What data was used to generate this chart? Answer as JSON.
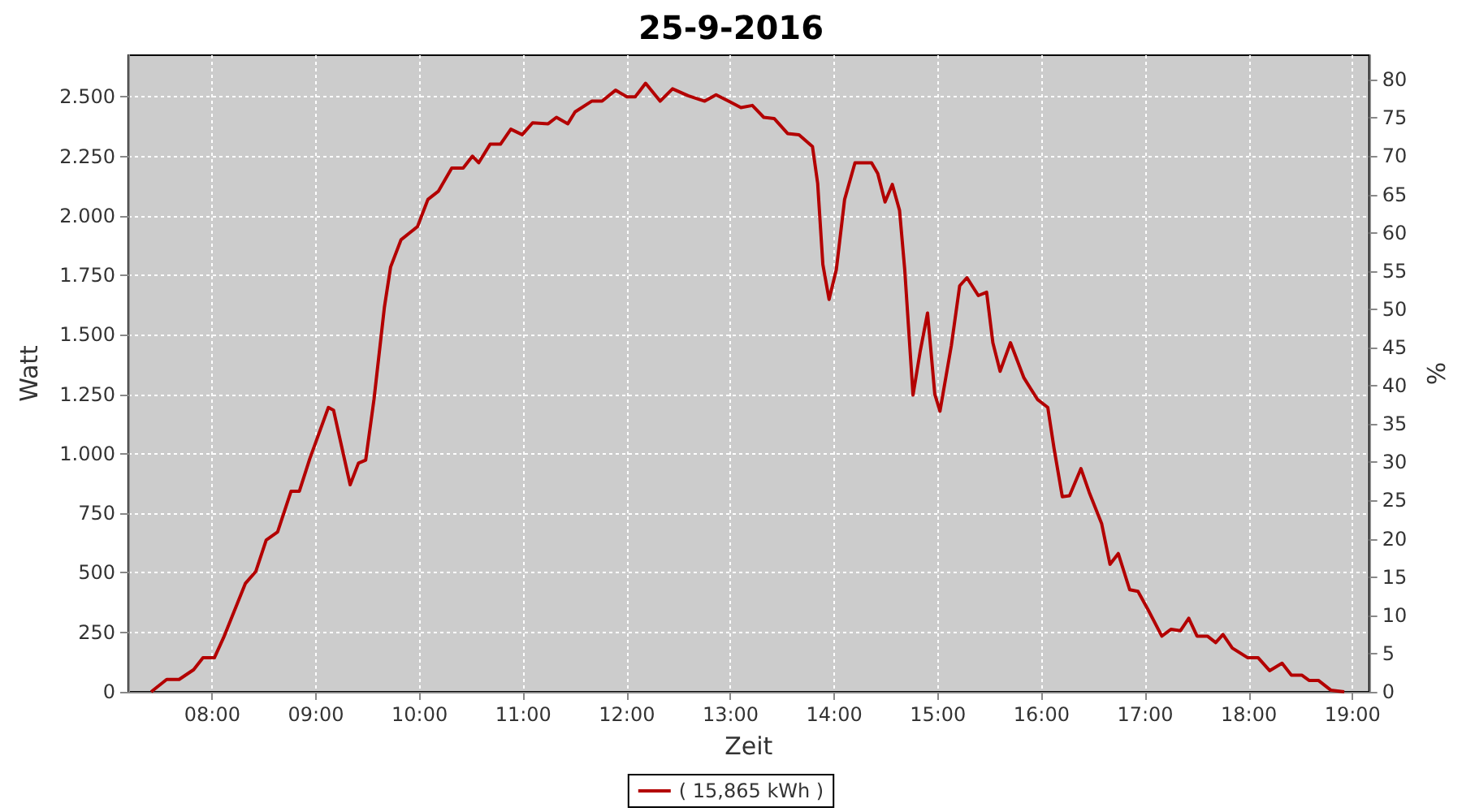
{
  "chart_data": {
    "type": "line",
    "title": "25-9-2016",
    "xlabel": "Zeit",
    "ylabel": "Watt",
    "y2label": "%",
    "xlim": [
      7.19,
      19.16
    ],
    "xticks": [
      {
        "value": 8,
        "label": "08:00"
      },
      {
        "value": 9,
        "label": "09:00"
      },
      {
        "value": 10,
        "label": "10:00"
      },
      {
        "value": 11,
        "label": "11:00"
      },
      {
        "value": 12,
        "label": "12:00"
      },
      {
        "value": 13,
        "label": "13:00"
      },
      {
        "value": 14,
        "label": "14:00"
      },
      {
        "value": 15,
        "label": "15:00"
      },
      {
        "value": 16,
        "label": "16:00"
      },
      {
        "value": 17,
        "label": "17:00"
      },
      {
        "value": 18,
        "label": "18:00"
      },
      {
        "value": 19,
        "label": "19:00"
      }
    ],
    "ylim": [
      0,
      2675
    ],
    "yticks": [
      0,
      250,
      500,
      750,
      {
        "value": 1000,
        "label": "1.000"
      },
      {
        "value": 1250,
        "label": "1.250"
      },
      {
        "value": 1500,
        "label": "1.500"
      },
      {
        "value": 1750,
        "label": "1.750"
      },
      {
        "value": 2000,
        "label": "2.000"
      },
      {
        "value": 2250,
        "label": "2.250"
      },
      {
        "value": 2500,
        "label": "2.500"
      }
    ],
    "y2lim": [
      0,
      83.2
    ],
    "y2ticks": [
      0,
      5,
      10,
      15,
      20,
      25,
      30,
      35,
      40,
      45,
      50,
      55,
      60,
      65,
      70,
      75,
      80
    ],
    "grid": true,
    "legend": "bottom",
    "marker": "none",
    "line_style": "solid",
    "series": [
      {
        "name": "( 15,865 kWh )",
        "color": "#b30000",
        "x": [
          7.41,
          7.56,
          7.68,
          7.82,
          7.91,
          8.02,
          8.11,
          8.32,
          8.42,
          8.52,
          8.63,
          8.76,
          8.84,
          8.94,
          9.12,
          9.17,
          9.33,
          9.41,
          9.48,
          9.56,
          9.66,
          9.72,
          9.82,
          9.98,
          10.08,
          10.18,
          10.31,
          10.42,
          10.51,
          10.57,
          10.68,
          10.78,
          10.88,
          10.99,
          11.09,
          11.24,
          11.32,
          11.43,
          11.5,
          11.66,
          11.76,
          11.89,
          12.0,
          12.08,
          12.18,
          12.32,
          12.44,
          12.59,
          12.75,
          12.86,
          12.98,
          13.1,
          13.21,
          13.32,
          13.42,
          13.55,
          13.66,
          13.79,
          13.84,
          13.89,
          13.95,
          14.02,
          14.1,
          14.2,
          14.36,
          14.42,
          14.49,
          14.56,
          14.63,
          14.68,
          14.76,
          14.83,
          14.9,
          14.97,
          15.02,
          15.13,
          15.21,
          15.28,
          15.39,
          15.47,
          15.53,
          15.6,
          15.7,
          15.83,
          15.96,
          16.06,
          16.12,
          16.2,
          16.27,
          16.38,
          16.46,
          16.58,
          16.66,
          16.74,
          16.85,
          16.93,
          17.03,
          17.16,
          17.25,
          17.34,
          17.42,
          17.5,
          17.6,
          17.68,
          17.75,
          17.84,
          17.99,
          18.09,
          18.2,
          18.32,
          18.41,
          18.51,
          18.58,
          18.67,
          18.79,
          18.92
        ],
        "values": [
          0,
          52,
          52,
          93,
          143,
          143,
          229,
          456,
          506,
          638,
          672,
          843,
          843,
          979,
          1195,
          1183,
          870,
          961,
          974,
          1229,
          1615,
          1785,
          1899,
          1955,
          2069,
          2103,
          2201,
          2201,
          2251,
          2223,
          2301,
          2301,
          2364,
          2341,
          2391,
          2387,
          2414,
          2387,
          2437,
          2482,
          2482,
          2528,
          2500,
          2500,
          2557,
          2482,
          2534,
          2505,
          2482,
          2509,
          2482,
          2455,
          2464,
          2414,
          2409,
          2346,
          2341,
          2291,
          2137,
          1796,
          1649,
          1774,
          2069,
          2223,
          2223,
          2178,
          2058,
          2132,
          2023,
          1774,
          1247,
          1433,
          1592,
          1251,
          1179,
          1456,
          1706,
          1740,
          1665,
          1679,
          1467,
          1347,
          1467,
          1319,
          1229,
          1195,
          1024,
          820,
          824,
          938,
          838,
          706,
          536,
          581,
          429,
          422,
          343,
          234,
          263,
          257,
          309,
          234,
          234,
          207,
          241,
          184,
          143,
          143,
          89,
          120,
          70,
          70,
          48,
          48,
          7,
          0
        ]
      }
    ]
  }
}
